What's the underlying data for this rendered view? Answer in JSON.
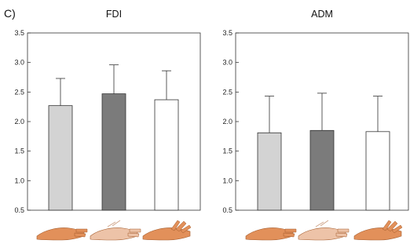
{
  "panel_label": "C)",
  "colors": {
    "condition_1": "#d3d3d3",
    "condition_2": "#7b7b7b",
    "condition_3": "#ffffff",
    "axis": "#333333",
    "skin": "#e2905a",
    "skin_pale": "#edc3a8"
  },
  "icons": [
    "hand-flat-icon",
    "hand-faded-icon",
    "hand-spread-fingers-icon"
  ],
  "chart_data": [
    {
      "type": "bar",
      "title": "FDI",
      "xlabel": "",
      "ylabel": "",
      "ylim": [
        0.5,
        3.5
      ],
      "yticks": [
        "0.5",
        "1.0",
        "1.5",
        "2.0",
        "2.5",
        "3.0",
        "3.5"
      ],
      "categories": [
        "hand-flat-icon",
        "hand-faded-icon",
        "hand-spread-fingers-icon"
      ],
      "values": [
        2.27,
        2.47,
        2.37
      ],
      "error_plus": [
        0.46,
        0.49,
        0.49
      ],
      "grid": false,
      "legend": "none"
    },
    {
      "type": "bar",
      "title": "ADM",
      "xlabel": "",
      "ylabel": "",
      "ylim": [
        0.5,
        3.5
      ],
      "yticks": [
        "0.5",
        "1.0",
        "1.5",
        "2.0",
        "2.5",
        "3.0",
        "3.5"
      ],
      "categories": [
        "hand-flat-icon",
        "hand-faded-icon",
        "hand-spread-fingers-icon"
      ],
      "values": [
        1.81,
        1.85,
        1.83
      ],
      "error_plus": [
        0.62,
        0.63,
        0.6
      ],
      "grid": false,
      "legend": "none"
    }
  ]
}
